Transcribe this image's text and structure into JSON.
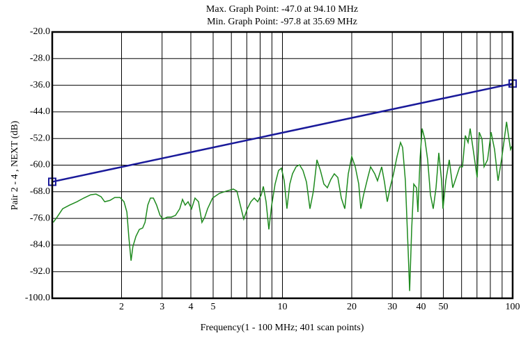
{
  "chart_data": {
    "type": "line",
    "annotations": [
      "Max. Graph Point: -47.0 at 94.10 MHz",
      "Min. Graph Point: -97.8 at 35.69 MHz"
    ],
    "x_label": "Frequency(1 - 100 MHz; 401 scan points)",
    "y_label": "Pair 2 - 4 , NEXT (dB)",
    "xscale": "log",
    "grid": true,
    "xlim": [
      1,
      100
    ],
    "xticks": [
      2,
      3,
      4,
      5,
      10,
      20,
      30,
      40,
      50,
      100
    ],
    "xminor_ticks": [
      6,
      7,
      8,
      9,
      60,
      70,
      80,
      90
    ],
    "ylim": [
      -100,
      -20
    ],
    "yticks": [
      {
        "value": -100,
        "label": "-100.0"
      },
      {
        "value": -92,
        "label": "-92.0"
      },
      {
        "value": -84,
        "label": "-84.0"
      },
      {
        "value": -76,
        "label": "-76.0"
      },
      {
        "value": -68,
        "label": "-68.0"
      },
      {
        "value": -60,
        "label": "-60.0"
      },
      {
        "value": -52,
        "label": "-52.0"
      },
      {
        "value": -44,
        "label": "-44.0"
      },
      {
        "value": -36,
        "label": "-36.0"
      },
      {
        "value": -28,
        "label": "-28.0"
      },
      {
        "value": -20,
        "label": "-20.0"
      }
    ],
    "series": [
      {
        "color": "#1a1a9a",
        "marker": "square",
        "x": [
          1,
          100
        ],
        "values": [
          -65.0,
          -35.5
        ]
      },
      {
        "color": "#1e8a1e",
        "x": [
          1.01,
          1.05,
          1.11,
          1.19,
          1.28,
          1.37,
          1.47,
          1.55,
          1.63,
          1.69,
          1.78,
          1.87,
          1.97,
          2.05,
          2.11,
          2.15,
          2.2,
          2.24,
          2.31,
          2.39,
          2.47,
          2.53,
          2.6,
          2.67,
          2.75,
          2.84,
          2.94,
          3.03,
          3.16,
          3.29,
          3.43,
          3.58,
          3.68,
          3.78,
          3.89,
          4.03,
          4.17,
          4.32,
          4.47,
          4.6,
          4.73,
          4.97,
          5.32,
          5.71,
          6.12,
          6.34,
          6.56,
          6.79,
          7.04,
          7.29,
          7.54,
          7.81,
          8.09,
          8.26,
          8.49,
          8.73,
          8.98,
          9.29,
          9.62,
          9.9,
          10.18,
          10.46,
          10.76,
          11.06,
          11.46,
          11.86,
          12.28,
          12.72,
          13.17,
          13.63,
          14.12,
          14.62,
          15.14,
          15.67,
          16.23,
          16.8,
          17.4,
          18.02,
          18.66,
          19.32,
          20.0,
          20.72,
          21.45,
          21.9,
          22.52,
          23.49,
          24.15,
          25.18,
          25.88,
          26.99,
          27.75,
          28.54,
          29.34,
          30.38,
          31.46,
          32.58,
          33.27,
          34.2,
          35.16,
          35.69,
          36.42,
          37.19,
          38.23,
          38.77,
          39.59,
          40.43,
          41.56,
          42.74,
          43.95,
          45.19,
          46.47,
          47.78,
          49.13,
          49.82,
          51.23,
          53.05,
          54.93,
          56.88,
          58.89,
          60.55,
          62.26,
          64.03,
          65.38,
          67.7,
          70.11,
          71.59,
          73.61,
          75.16,
          77.83,
          80.59,
          83.45,
          86.43,
          89.45,
          91.99,
          94.1,
          95.9,
          97.93,
          99.31
        ],
        "values": [
          -77.2,
          -75.6,
          -73.1,
          -72.0,
          -71.0,
          -69.9,
          -68.9,
          -68.7,
          -69.5,
          -71.0,
          -70.6,
          -69.7,
          -69.7,
          -71.0,
          -74.1,
          -81.4,
          -88.7,
          -84.5,
          -81.4,
          -79.3,
          -78.9,
          -77.2,
          -72.0,
          -69.9,
          -69.9,
          -72.0,
          -75.1,
          -76.2,
          -75.6,
          -75.6,
          -75.1,
          -73.1,
          -70.3,
          -72.0,
          -71.0,
          -73.1,
          -69.9,
          -71.0,
          -77.2,
          -75.6,
          -73.1,
          -69.9,
          -68.5,
          -67.8,
          -67.2,
          -67.8,
          -72.0,
          -76.2,
          -73.1,
          -71.0,
          -69.9,
          -71.0,
          -68.9,
          -66.4,
          -71.0,
          -79.3,
          -72.0,
          -65.7,
          -61.6,
          -60.9,
          -64.7,
          -73.1,
          -65.7,
          -62.6,
          -60.5,
          -59.9,
          -61.6,
          -65.1,
          -73.1,
          -67.8,
          -58.4,
          -61.6,
          -65.7,
          -66.8,
          -64.3,
          -62.6,
          -63.7,
          -69.9,
          -73.1,
          -62.6,
          -57.4,
          -60.5,
          -65.7,
          -73.1,
          -68.9,
          -63.7,
          -60.5,
          -62.6,
          -64.7,
          -60.5,
          -65.1,
          -71.0,
          -66.8,
          -62.6,
          -57.4,
          -53.2,
          -54.7,
          -64.7,
          -85.6,
          -97.8,
          -79.3,
          -65.7,
          -66.8,
          -74.1,
          -58.4,
          -49.0,
          -52.2,
          -58.4,
          -68.9,
          -73.1,
          -66.8,
          -56.3,
          -64.7,
          -73.1,
          -64.7,
          -58.4,
          -66.8,
          -63.7,
          -60.5,
          -60.5,
          -51.1,
          -53.2,
          -49.0,
          -56.3,
          -63.7,
          -50.1,
          -52.2,
          -60.5,
          -58.4,
          -50.1,
          -55.3,
          -64.7,
          -58.4,
          -52.2,
          -47.0,
          -51.1,
          -55.3,
          -54.3
        ]
      }
    ]
  }
}
